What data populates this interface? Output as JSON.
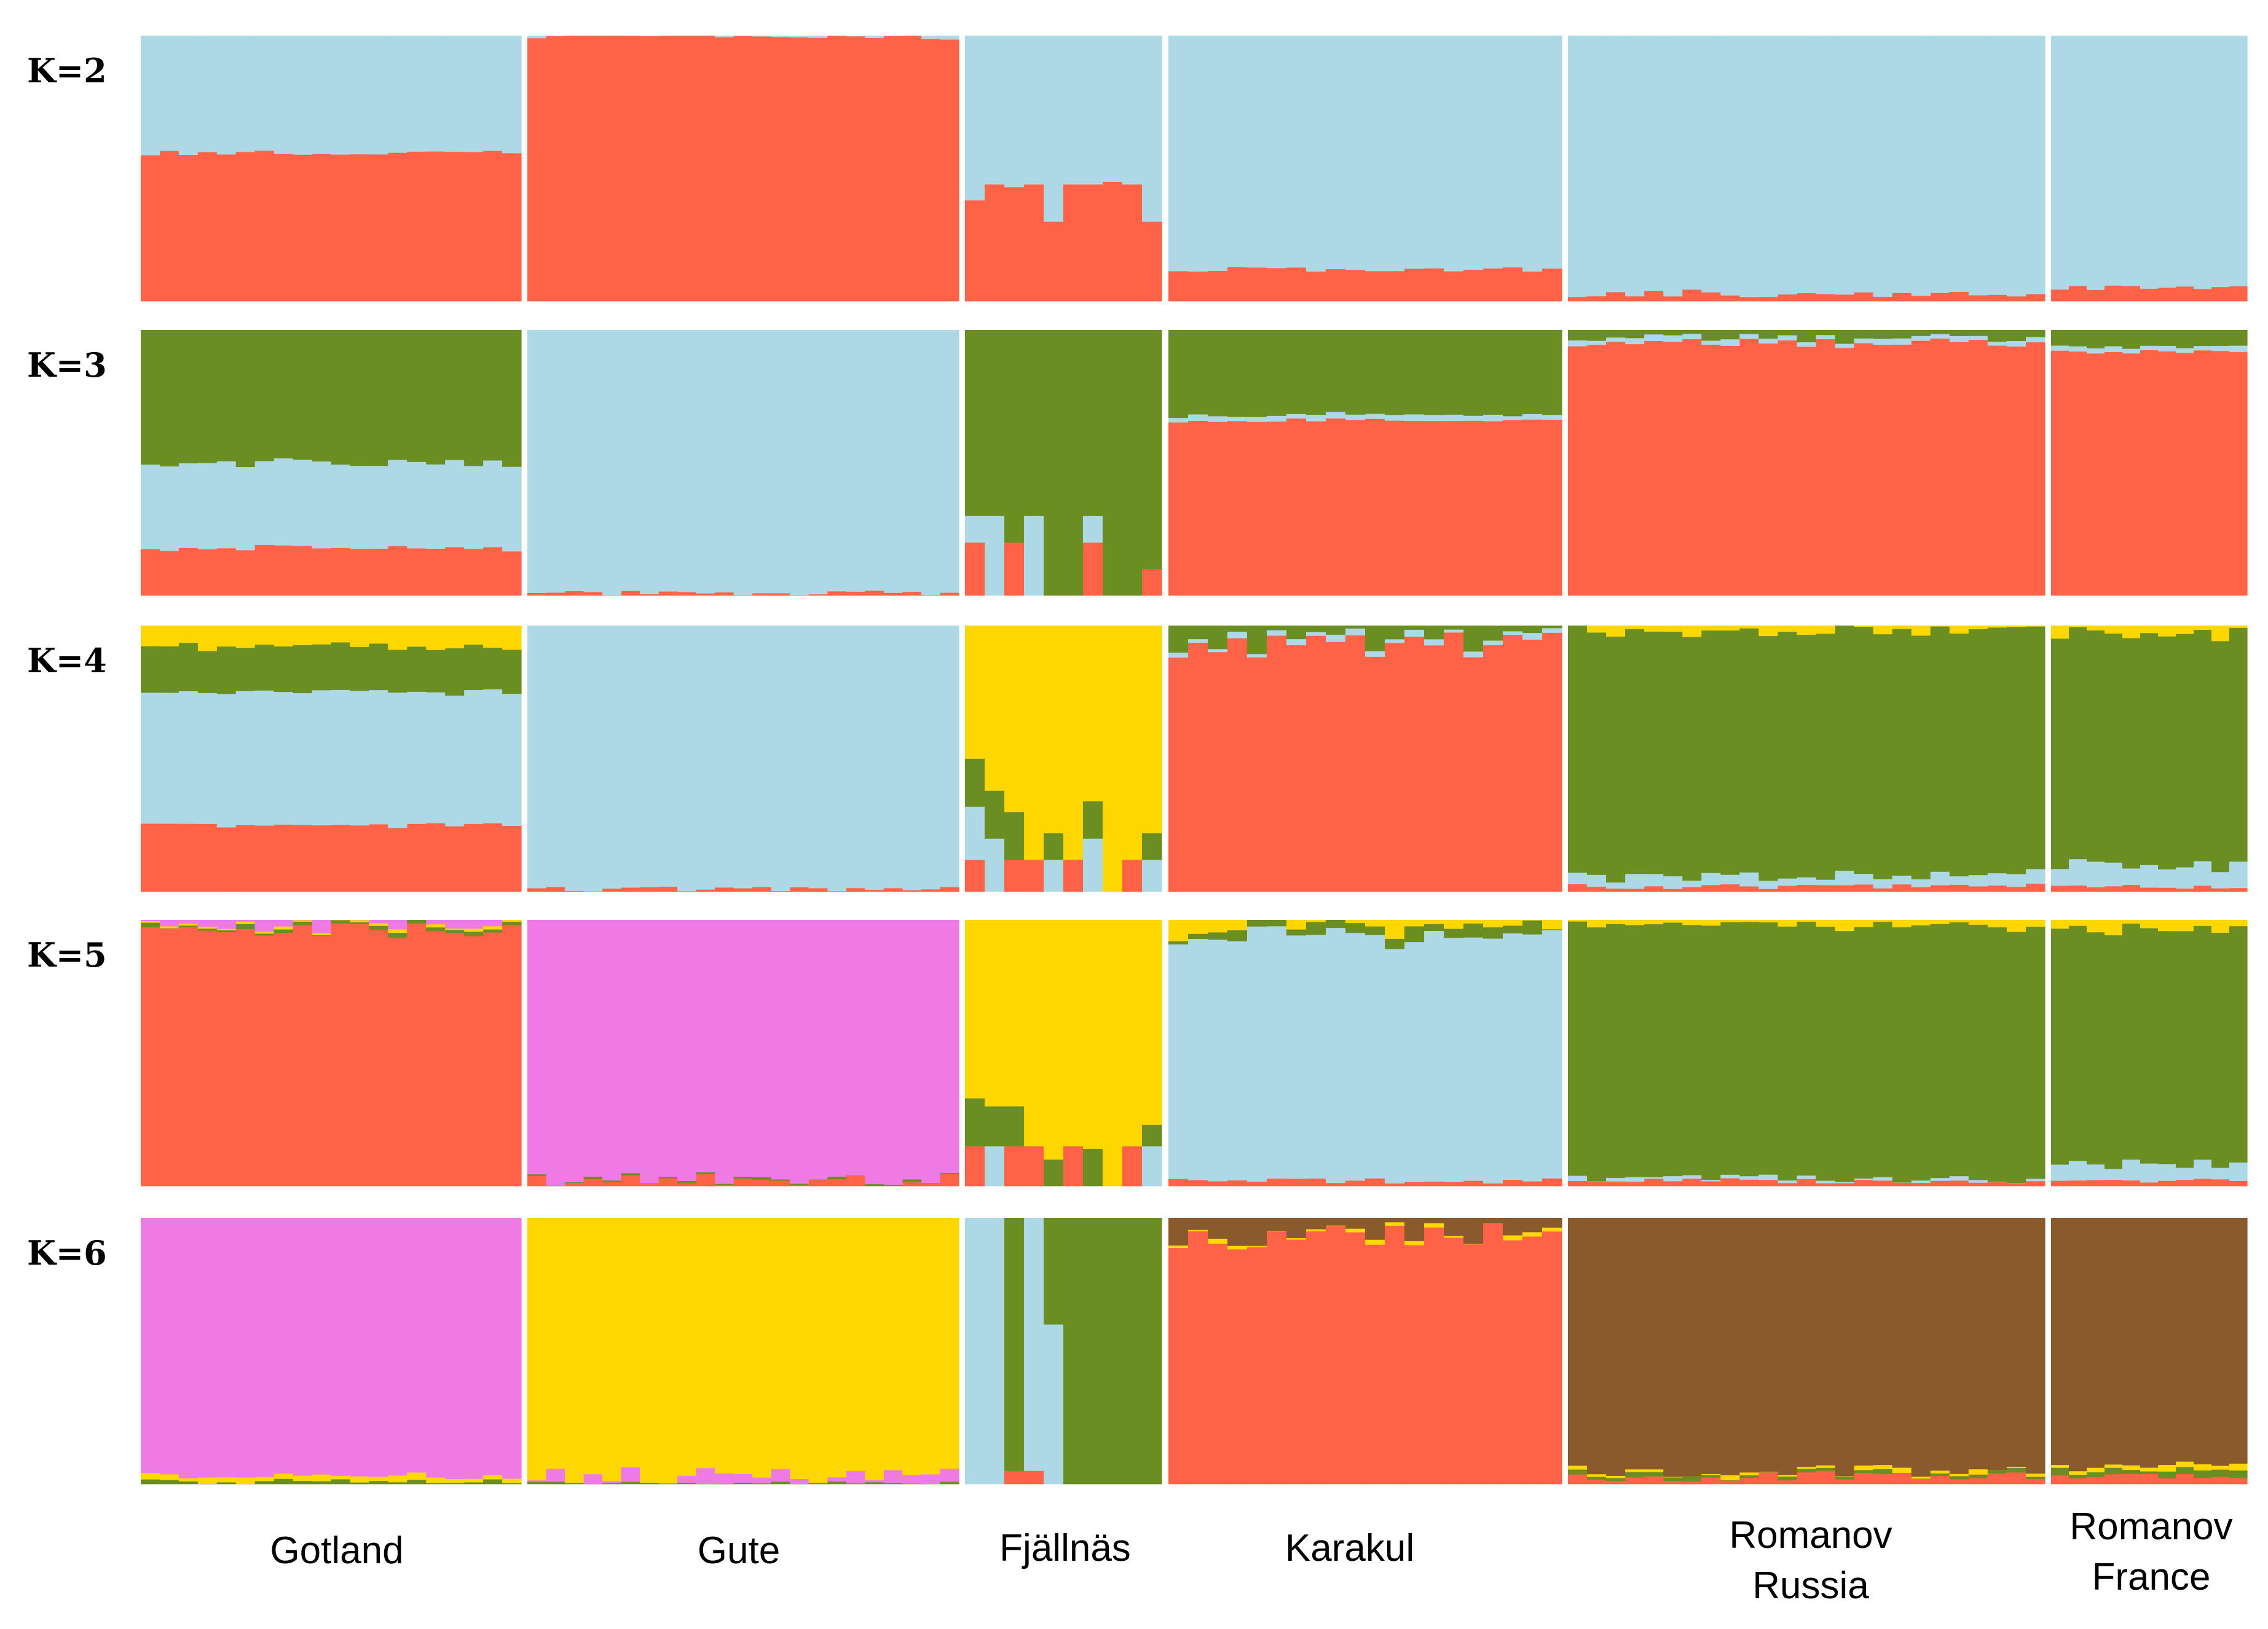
{
  "chart_data": {
    "type": "bar",
    "stacked": true,
    "normalized": true,
    "ylim": [
      0,
      1
    ],
    "colors": {
      "blue": "#ADD8E6",
      "red": "#FF6347",
      "green": "#6B8E23",
      "yellow": "#FFD700",
      "pink": "#EE7BE5",
      "brown": "#8B5A2B"
    },
    "populations": [
      {
        "name": "Gotland",
        "subname": "",
        "n": 20
      },
      {
        "name": "Gute",
        "subname": "",
        "n": 23
      },
      {
        "name": "Fjällnäs",
        "subname": "",
        "n": 10
      },
      {
        "name": "Karakul",
        "subname": "",
        "n": 20
      },
      {
        "name": "Romanov",
        "subname": "Russia",
        "n": 25
      },
      {
        "name": "Romanov",
        "subname": "France",
        "n": 11
      }
    ],
    "panels": [
      {
        "label": "K=2",
        "populations": [
          {
            "comp": [
              {
                "color": "red",
                "base": 0.56,
                "var": 0.01
              },
              {
                "color": "blue",
                "rest": true
              }
            ]
          },
          {
            "comp": [
              {
                "color": "red",
                "base": 0.995,
                "var": 0.01
              },
              {
                "color": "blue",
                "rest": true
              }
            ]
          },
          {
            "comp": [
              {
                "color": "red",
                "values": [
                  0.38,
                  0.44,
                  0.43,
                  0.44,
                  0.3,
                  0.44,
                  0.44,
                  0.45,
                  0.44,
                  0.3
                ]
              },
              {
                "color": "blue",
                "rest": true
              }
            ]
          },
          {
            "comp": [
              {
                "color": "red",
                "base": 0.12,
                "var": 0.01
              },
              {
                "color": "blue",
                "rest": true
              }
            ]
          },
          {
            "comp": [
              {
                "color": "red",
                "base": 0.03,
                "var": 0.015
              },
              {
                "color": "blue",
                "rest": true
              }
            ]
          },
          {
            "comp": [
              {
                "color": "red",
                "base": 0.05,
                "var": 0.01
              },
              {
                "color": "blue",
                "rest": true
              }
            ]
          }
        ]
      },
      {
        "label": "K=3",
        "populations": [
          {
            "comp": [
              {
                "color": "red",
                "base": 0.18,
                "var": 0.015
              },
              {
                "color": "blue",
                "base": 0.32,
                "var": 0.01
              },
              {
                "color": "green",
                "rest": true
              }
            ]
          },
          {
            "comp": [
              {
                "color": "red",
                "base": 0.01,
                "var": 0.01
              },
              {
                "color": "blue",
                "rest": true
              }
            ]
          },
          {
            "comp": [
              {
                "color": "red",
                "values": [
                  0.2,
                  0.0,
                  0.2,
                  0.0,
                  0.0,
                  0.0,
                  0.2,
                  0.0,
                  0.0,
                  0.1
                ]
              },
              {
                "color": "blue",
                "values": [
                  0.1,
                  0.3,
                  0.0,
                  0.3,
                  0.0,
                  0.0,
                  0.1,
                  0.0,
                  0.0,
                  0.0
                ]
              },
              {
                "color": "green",
                "rest": true
              }
            ]
          },
          {
            "comp": [
              {
                "color": "red",
                "base": 0.66,
                "var": 0.008
              },
              {
                "color": "blue",
                "base": 0.02,
                "var": 0.005
              },
              {
                "color": "green",
                "rest": true
              }
            ]
          },
          {
            "comp": [
              {
                "color": "red",
                "base": 0.95,
                "var": 0.02
              },
              {
                "color": "blue",
                "base": 0.02,
                "var": 0.005
              },
              {
                "color": "green",
                "rest": true
              }
            ]
          },
          {
            "comp": [
              {
                "color": "red",
                "base": 0.92,
                "var": 0.01
              },
              {
                "color": "blue",
                "base": 0.02,
                "var": 0.005
              },
              {
                "color": "green",
                "rest": true
              }
            ]
          }
        ]
      },
      {
        "label": "K=4",
        "populations": [
          {
            "comp": [
              {
                "color": "red",
                "base": 0.25,
                "var": 0.01
              },
              {
                "color": "blue",
                "base": 0.5,
                "var": 0.01
              },
              {
                "color": "green",
                "base": 0.17,
                "var": 0.015
              },
              {
                "color": "yellow",
                "rest": true
              }
            ]
          },
          {
            "comp": [
              {
                "color": "red",
                "base": 0.01,
                "var": 0.01
              },
              {
                "color": "blue",
                "rest": true
              }
            ]
          },
          {
            "comp": [
              {
                "color": "red",
                "values": [
                  0.12,
                  0.0,
                  0.12,
                  0.12,
                  0.0,
                  0.12,
                  0.0,
                  0.0,
                  0.12,
                  0.0
                ]
              },
              {
                "color": "blue",
                "values": [
                  0.2,
                  0.2,
                  0.0,
                  0.0,
                  0.12,
                  0.0,
                  0.2,
                  0.0,
                  0.0,
                  0.12
                ]
              },
              {
                "color": "green",
                "values": [
                  0.18,
                  0.18,
                  0.18,
                  0.0,
                  0.1,
                  0.0,
                  0.14,
                  0.0,
                  0.0,
                  0.1
                ]
              },
              {
                "color": "yellow",
                "rest": true
              }
            ]
          },
          {
            "comp": [
              {
                "color": "red",
                "base": 0.93,
                "var": 0.05
              },
              {
                "color": "blue",
                "base": 0.02,
                "var": 0.01
              },
              {
                "color": "green",
                "rest": true
              }
            ]
          },
          {
            "comp": [
              {
                "color": "red",
                "base": 0.02,
                "var": 0.01
              },
              {
                "color": "blue",
                "base": 0.04,
                "var": 0.02
              },
              {
                "color": "green",
                "base": 0.92,
                "var": 0.01
              },
              {
                "color": "yellow",
                "rest": true
              }
            ]
          },
          {
            "comp": [
              {
                "color": "red",
                "base": 0.02,
                "var": 0.01
              },
              {
                "color": "blue",
                "base": 0.08,
                "var": 0.02
              },
              {
                "color": "green",
                "base": 0.87,
                "var": 0.01
              },
              {
                "color": "yellow",
                "rest": true
              }
            ]
          }
        ]
      },
      {
        "label": "K=5",
        "populations": [
          {
            "comp": [
              {
                "color": "red",
                "base": 0.96,
                "var": 0.03
              },
              {
                "color": "green",
                "base": 0.01,
                "var": 0.01
              },
              {
                "color": "yellow",
                "base": 0.01,
                "var": 0.005
              },
              {
                "color": "pink",
                "rest": true
              }
            ]
          },
          {
            "comp": [
              {
                "color": "red",
                "base": 0.02,
                "var": 0.03
              },
              {
                "color": "green",
                "base": 0.005,
                "var": 0.005
              },
              {
                "color": "pink",
                "rest": true
              }
            ]
          },
          {
            "comp": [
              {
                "color": "red",
                "values": [
                  0.15,
                  0.0,
                  0.15,
                  0.15,
                  0.0,
                  0.15,
                  0.0,
                  0.0,
                  0.15,
                  0.0
                ]
              },
              {
                "color": "blue",
                "values": [
                  0.0,
                  0.15,
                  0.0,
                  0.0,
                  0.0,
                  0.0,
                  0.0,
                  0.0,
                  0.0,
                  0.15
                ]
              },
              {
                "color": "green",
                "values": [
                  0.18,
                  0.15,
                  0.15,
                  0.0,
                  0.1,
                  0.0,
                  0.14,
                  0.0,
                  0.0,
                  0.08
                ]
              },
              {
                "color": "yellow",
                "rest": true
              }
            ]
          },
          {
            "comp": [
              {
                "color": "red",
                "base": 0.02,
                "var": 0.01
              },
              {
                "color": "blue",
                "base": 0.92,
                "var": 0.04
              },
              {
                "color": "green",
                "base": 0.03,
                "var": 0.03
              },
              {
                "color": "yellow",
                "rest": true
              }
            ]
          },
          {
            "comp": [
              {
                "color": "red",
                "base": 0.02,
                "var": 0.01
              },
              {
                "color": "blue",
                "base": 0.01,
                "var": 0.01
              },
              {
                "color": "green",
                "base": 0.95,
                "var": 0.01
              },
              {
                "color": "yellow",
                "rest": true
              }
            ]
          },
          {
            "comp": [
              {
                "color": "red",
                "base": 0.02,
                "var": 0.01
              },
              {
                "color": "blue",
                "base": 0.06,
                "var": 0.02
              },
              {
                "color": "green",
                "base": 0.88,
                "var": 0.01
              },
              {
                "color": "yellow",
                "rest": true
              }
            ]
          }
        ]
      },
      {
        "label": "K=6",
        "populations": [
          {
            "comp": [
              {
                "color": "green",
                "base": 0.01,
                "var": 0.01
              },
              {
                "color": "yellow",
                "base": 0.02,
                "var": 0.01
              },
              {
                "color": "pink",
                "rest": true
              }
            ]
          },
          {
            "comp": [
              {
                "color": "green",
                "base": 0.005,
                "var": 0.005
              },
              {
                "color": "pink",
                "base": 0.02,
                "var": 0.04
              },
              {
                "color": "yellow",
                "rest": true
              }
            ]
          },
          {
            "comp": [
              {
                "color": "red",
                "values": [
                  0.0,
                  0.0,
                  0.05,
                  0.05,
                  0.0,
                  0.0,
                  0.0,
                  0.0,
                  0.0,
                  0.0
                ]
              },
              {
                "color": "blue",
                "values": [
                  1.0,
                  1.0,
                  0.0,
                  0.95,
                  0.6,
                  0.0,
                  0.0,
                  0.0,
                  0.0,
                  0.0
                ]
              },
              {
                "color": "green",
                "rest": true
              }
            ]
          },
          {
            "comp": [
              {
                "color": "red",
                "base": 0.93,
                "var": 0.05
              },
              {
                "color": "yellow",
                "base": 0.01,
                "var": 0.01
              },
              {
                "color": "brown",
                "rest": true
              }
            ]
          },
          {
            "comp": [
              {
                "color": "red",
                "base": 0.03,
                "var": 0.02
              },
              {
                "color": "green",
                "base": 0.01,
                "var": 0.01
              },
              {
                "color": "yellow",
                "base": 0.01,
                "var": 0.01
              },
              {
                "color": "brown",
                "rest": true
              }
            ]
          },
          {
            "comp": [
              {
                "color": "red",
                "base": 0.03,
                "var": 0.01
              },
              {
                "color": "green",
                "base": 0.02,
                "var": 0.01
              },
              {
                "color": "yellow",
                "base": 0.02,
                "var": 0.01
              },
              {
                "color": "brown",
                "rest": true
              }
            ]
          }
        ]
      }
    ]
  }
}
